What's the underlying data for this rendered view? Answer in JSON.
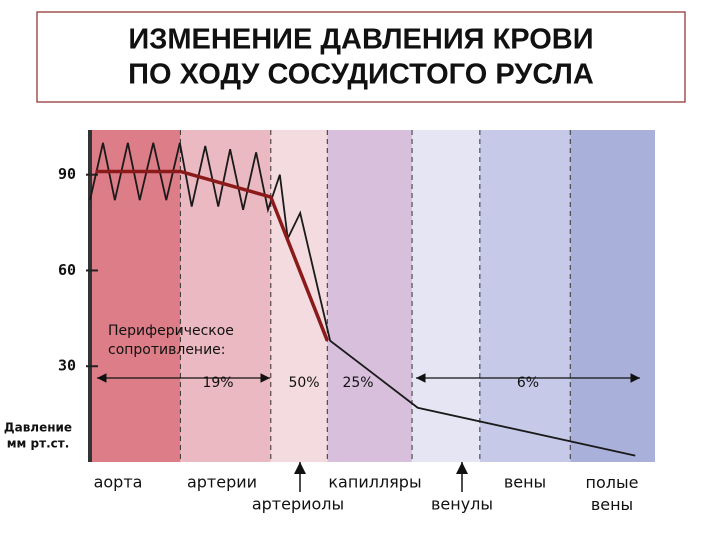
{
  "chart_data": {
    "type": "line",
    "title": [
      "ИЗМЕНЕНИЕ ДАВЛЕНИЯ КРОВИ",
      "ПО ХОДУ СОСУДИСТОГО РУСЛА"
    ],
    "ylabel": [
      "Давление",
      "мм рт.ст."
    ],
    "categories": [
      "аорта",
      "артерии",
      "артериолы",
      "капилляры",
      "венулы",
      "вены",
      "полые вены"
    ],
    "band_colors": [
      "#dc7d88",
      "#ebb9c1",
      "#f3dbdf",
      "#d8c0dc",
      "#e6e5f4",
      "#c6c9e8",
      "#a9b0da"
    ],
    "band_edges": [
      0,
      16,
      32,
      42,
      57,
      69,
      85,
      100
    ],
    "xlim": [
      0,
      100
    ],
    "ylim": [
      0,
      104
    ],
    "yticks": [
      30,
      60,
      90
    ],
    "series": [
      {
        "color": "#1a1a1a",
        "x": [
          0,
          2.3,
          4.4,
          6.7,
          8.8,
          11.2,
          13.5,
          15.9,
          18,
          20.4,
          22.7,
          24.8,
          27.1,
          29.4,
          31.5,
          33.6,
          35,
          37.2,
          42.5,
          58,
          96.5
        ],
        "values": [
          82,
          100,
          82,
          100,
          82,
          100,
          82,
          100,
          80,
          99,
          80,
          98,
          79,
          97,
          79,
          90,
          70,
          78,
          38,
          17,
          2
        ]
      },
      {
        "color": "#8b1a1a",
        "x": [
          1,
          16,
          32,
          42
        ],
        "values": [
          91,
          91,
          83,
          38
        ]
      }
    ],
    "resistance": {
      "label": [
        "Периферическое",
        "сопротивление:"
      ],
      "values": [
        19,
        50,
        25,
        6
      ],
      "value_labels": [
        "19%",
        "50%",
        "25%",
        "6%"
      ]
    }
  }
}
